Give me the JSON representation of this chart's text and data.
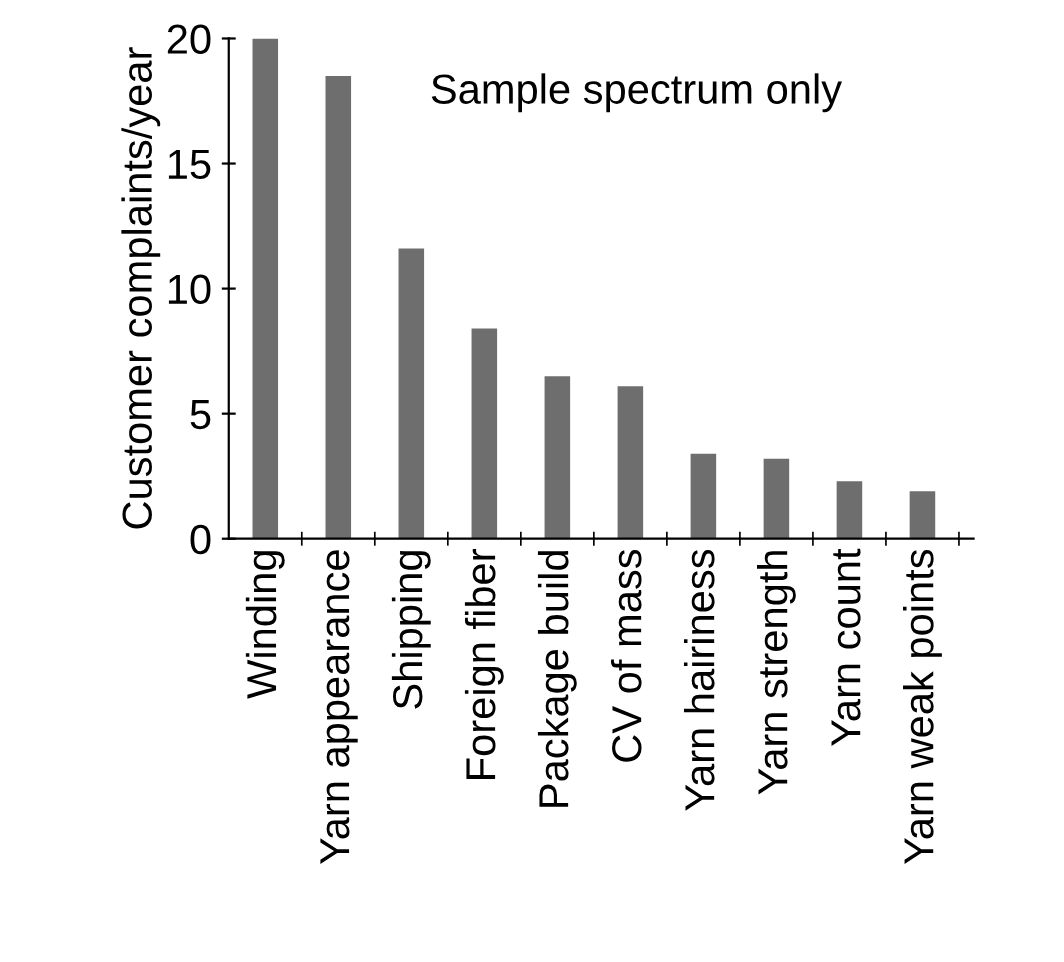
{
  "chart_data": {
    "type": "bar",
    "ylabel": "Customer complaints/year",
    "categories": [
      "Winding",
      "Yarn appearance",
      "Shipping",
      "Foreign fiber",
      "Package build",
      "CV of mass",
      "Yarn hairiness",
      "Yarn strength",
      "Yarn count",
      "Yarn weak points"
    ],
    "values": [
      20,
      18.5,
      11.6,
      8.4,
      6.5,
      6.1,
      3.4,
      3.2,
      2.3,
      1.9
    ],
    "color": "#6e6e6e",
    "ylim": [
      0,
      20
    ],
    "yticks": [
      0,
      5,
      10,
      15,
      20
    ],
    "grid": false,
    "annotations": [
      "Sample spectrum only"
    ]
  }
}
